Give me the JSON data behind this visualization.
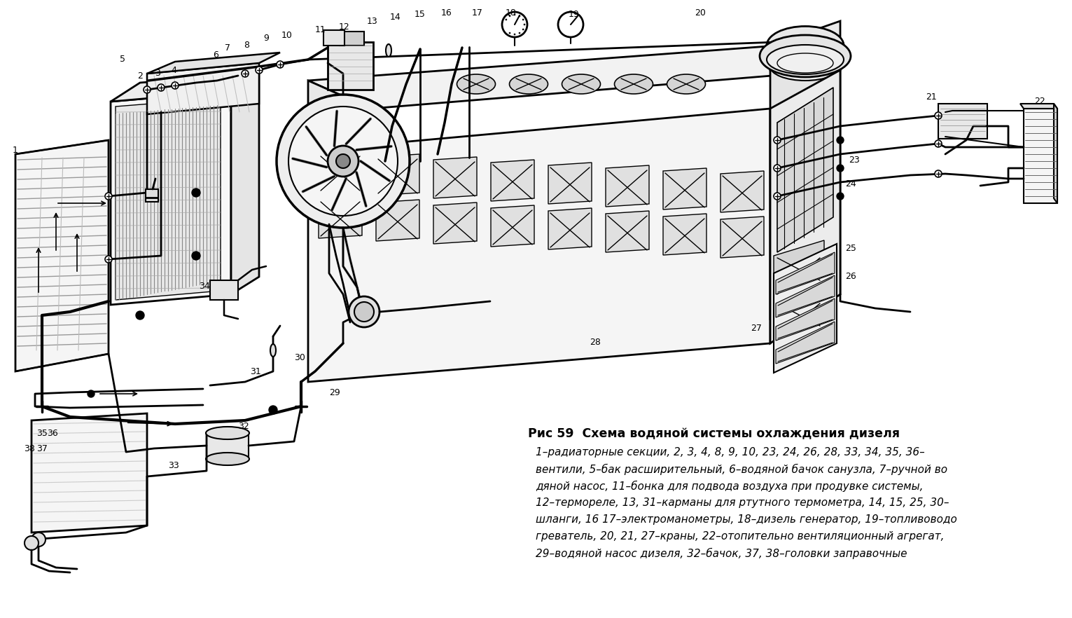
{
  "title": "Рис 59  Схема водяной системы охлаждения дизеля",
  "caption_lines": [
    "1–радиаторные секции, 2, 3, 4, 8, 9, 10, 23, 24, 26, 28, 33, 34, 35, 36–",
    "вентили, 5–бак расширительный, 6–водяной бачок санузла, 7–ручной во",
    "дяной насос, 11–бонка для подвода воздуха при продувке системы,",
    "12–термореле, 13, 31–карманы для ртутного термометра, 14, 15, 25, 30–",
    "шланги, 16 17–электроманометры, 18–дизель генератор, 19–топливоводо",
    "греватель, 20, 21, 27–краны, 22–отопительно вентиляционный агрегат,",
    "29–водяной насос дизеля, 32–бачок, 37, 38–головки заправочные"
  ],
  "bg_color": "#ffffff",
  "text_color": "#000000",
  "title_fontsize": 12.5,
  "caption_fontsize": 11.0,
  "figure_width": 15.31,
  "figure_height": 8.82,
  "dpi": 100
}
